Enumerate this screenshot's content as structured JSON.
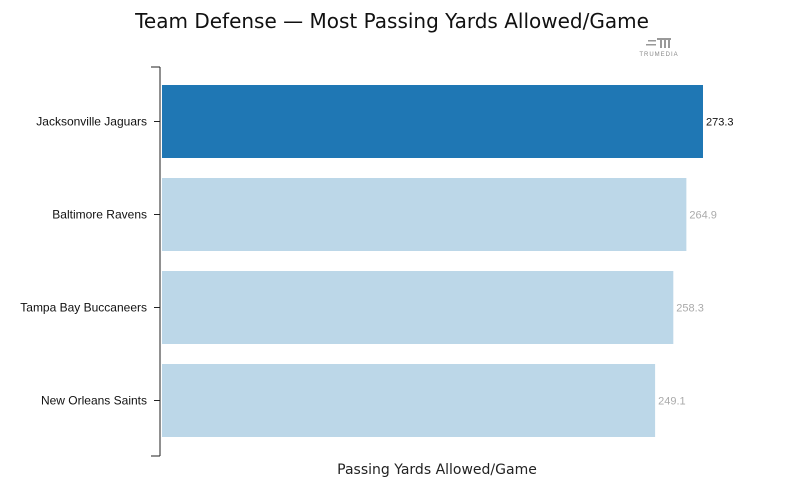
{
  "chart_data": {
    "type": "bar",
    "orientation": "horizontal",
    "title": "Team Defense — Most Passing Yards Allowed/Game",
    "xlabel": "Passing Yards Allowed/Game",
    "ylabel": "",
    "categories": [
      "Jacksonville Jaguars",
      "Baltimore Ravens",
      "Tampa Bay Buccaneers",
      "New Orleans Saints"
    ],
    "values": [
      273.3,
      264.9,
      258.3,
      249.1
    ],
    "value_labels": [
      "273.3",
      "264.9",
      "258.3",
      "249.1"
    ],
    "highlighted": [
      true,
      false,
      false,
      false
    ],
    "xlim": [
      0,
      273.3
    ],
    "grid": false,
    "colors": {
      "highlight": "#1f77b4",
      "normal": "#bcd7e8",
      "highlight_label": "#111111",
      "normal_label": "#aaaaaa",
      "axis": "#222222"
    }
  },
  "logo": {
    "text": "TRUMEDIA"
  }
}
